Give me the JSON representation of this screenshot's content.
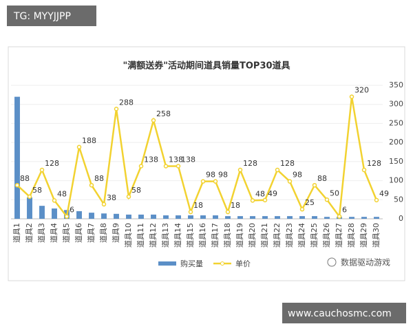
{
  "chart_data": {
    "type": "bar",
    "title": "\"满额送券\"活动期间道具销量TOP30道具",
    "categories": [
      "道具1",
      "道具2",
      "道具3",
      "道具4",
      "道具5",
      "道具6",
      "道具7",
      "道具8",
      "道具9",
      "道具10",
      "道具11",
      "道具12",
      "道具13",
      "道具14",
      "道具15",
      "道具16",
      "道具17",
      "道具18",
      "道具19",
      "道具20",
      "道具21",
      "道具22",
      "道具23",
      "道具24",
      "道具25",
      "道具26",
      "道具27",
      "道具28",
      "道具29",
      "道具30"
    ],
    "series": [
      {
        "name": "购买量",
        "color": "#5b8fc7",
        "type": "bar",
        "values": [
          320,
          56,
          34,
          27,
          23,
          20,
          16,
          14,
          13,
          11,
          11,
          11,
          9,
          9,
          9,
          9,
          9,
          7,
          7,
          7,
          7,
          7,
          7,
          7,
          7,
          5,
          5,
          5,
          5,
          5
        ]
      },
      {
        "name": "单价",
        "color": "#f2d230",
        "type": "line",
        "axis": "y2",
        "values": [
          88,
          58,
          128,
          48,
          6,
          188,
          88,
          38,
          288,
          58,
          138,
          258,
          138,
          138,
          18,
          98,
          98,
          18,
          128,
          48,
          49,
          128,
          98,
          25,
          88,
          50,
          6,
          320,
          128,
          49
        ]
      }
    ],
    "ylim": [
      0,
      350
    ],
    "y2lim": [
      0,
      350
    ],
    "y2ticks": [
      0,
      50,
      100,
      150,
      200,
      250,
      300,
      350
    ],
    "grid": true,
    "legend": "bottom"
  },
  "overlays": {
    "tag": "TG: MYYJJPP",
    "site": "www.cauchosmc.com",
    "logo_text": "数据驱动游戏"
  }
}
